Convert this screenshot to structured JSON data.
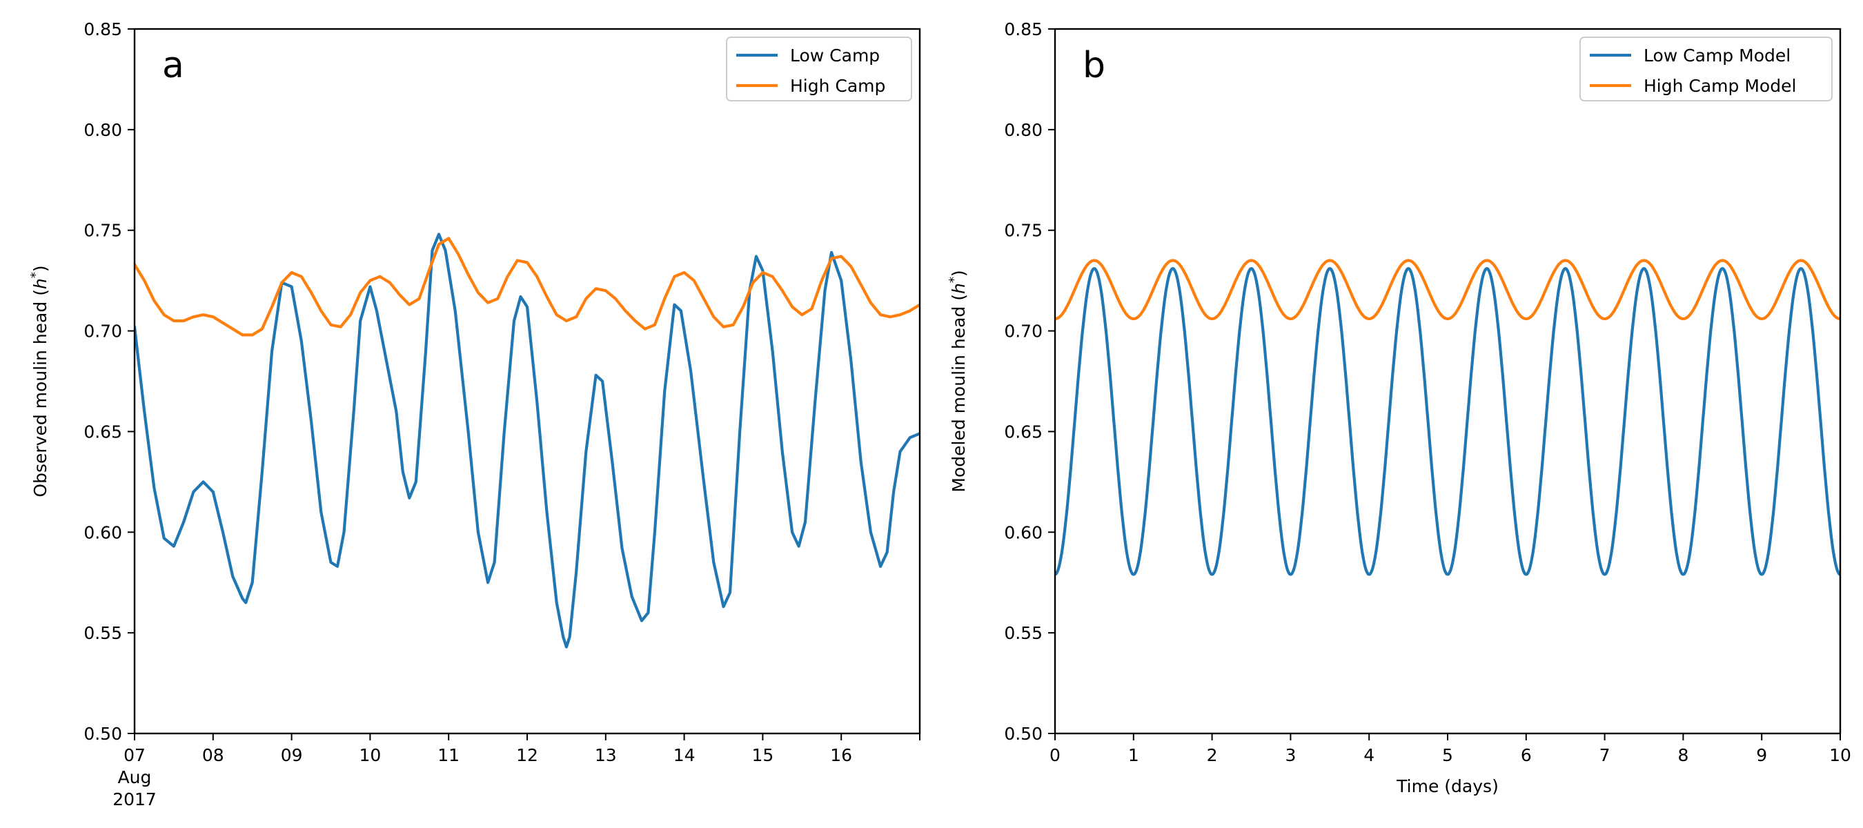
{
  "colors": {
    "low": "#1f77b4",
    "high": "#ff7f0e",
    "axes": "#000000",
    "legend_border": "#cccccc"
  },
  "chart_data": [
    {
      "type": "line",
      "panel_label": "a",
      "title": "",
      "xlabel": "",
      "ylabel": "Observed moulin head (",
      "ylabel_symbol": "h",
      "ylabel_sup": "*",
      "ylabel_end": ")",
      "x_unit": "date",
      "xlim": [
        "2017-08-07",
        "2017-08-17"
      ],
      "ylim": [
        0.5,
        0.85
      ],
      "x_tick_labels": [
        "07",
        "08",
        "09",
        "10",
        "11",
        "12",
        "13",
        "14",
        "15",
        "16"
      ],
      "x_tick_dates": [
        "2017-08-07",
        "2017-08-08",
        "2017-08-09",
        "2017-08-10",
        "2017-08-11",
        "2017-08-12",
        "2017-08-13",
        "2017-08-14",
        "2017-08-15",
        "2017-08-16"
      ],
      "x_tick_sublabel": [
        "Aug",
        "2017"
      ],
      "y_ticks": [
        0.5,
        0.55,
        0.6,
        0.65,
        0.7,
        0.75,
        0.8,
        0.85
      ],
      "y_tick_labels": [
        "0.50",
        "0.55",
        "0.60",
        "0.65",
        "0.70",
        "0.75",
        "0.80",
        "0.85"
      ],
      "grid": false,
      "legend": "top-right",
      "series": [
        {
          "name": "Low Camp",
          "color_key": "low",
          "points": [
            [
              "2017-08-07 00:00",
              0.702
            ],
            [
              "2017-08-07 03:00",
              0.66
            ],
            [
              "2017-08-07 06:00",
              0.622
            ],
            [
              "2017-08-07 09:00",
              0.597
            ],
            [
              "2017-08-07 12:00",
              0.593
            ],
            [
              "2017-08-07 15:00",
              0.605
            ],
            [
              "2017-08-07 18:00",
              0.62
            ],
            [
              "2017-08-07 21:00",
              0.625
            ],
            [
              "2017-08-08 00:00",
              0.62
            ],
            [
              "2017-08-08 03:00",
              0.6
            ],
            [
              "2017-08-08 06:00",
              0.578
            ],
            [
              "2017-08-08 09:00",
              0.567
            ],
            [
              "2017-08-08 10:00",
              0.565
            ],
            [
              "2017-08-08 12:00",
              0.575
            ],
            [
              "2017-08-08 15:00",
              0.63
            ],
            [
              "2017-08-08 18:00",
              0.69
            ],
            [
              "2017-08-08 21:00",
              0.724
            ],
            [
              "2017-08-09 00:00",
              0.722
            ],
            [
              "2017-08-09 03:00",
              0.695
            ],
            [
              "2017-08-09 06:00",
              0.655
            ],
            [
              "2017-08-09 09:00",
              0.61
            ],
            [
              "2017-08-09 12:00",
              0.585
            ],
            [
              "2017-08-09 14:00",
              0.583
            ],
            [
              "2017-08-09 16:00",
              0.6
            ],
            [
              "2017-08-09 19:00",
              0.66
            ],
            [
              "2017-08-09 21:00",
              0.705
            ],
            [
              "2017-08-10 00:00",
              0.722
            ],
            [
              "2017-08-10 02:00",
              0.71
            ],
            [
              "2017-08-10 05:00",
              0.685
            ],
            [
              "2017-08-10 08:00",
              0.66
            ],
            [
              "2017-08-10 10:00",
              0.63
            ],
            [
              "2017-08-10 12:00",
              0.617
            ],
            [
              "2017-08-10 14:00",
              0.625
            ],
            [
              "2017-08-10 17:00",
              0.69
            ],
            [
              "2017-08-10 19:00",
              0.74
            ],
            [
              "2017-08-10 21:00",
              0.748
            ],
            [
              "2017-08-10 23:00",
              0.74
            ],
            [
              "2017-08-11 02:00",
              0.71
            ],
            [
              "2017-08-11 06:00",
              0.65
            ],
            [
              "2017-08-11 09:00",
              0.6
            ],
            [
              "2017-08-11 12:00",
              0.575
            ],
            [
              "2017-08-11 14:00",
              0.585
            ],
            [
              "2017-08-11 17:00",
              0.65
            ],
            [
              "2017-08-11 20:00",
              0.705
            ],
            [
              "2017-08-11 22:00",
              0.717
            ],
            [
              "2017-08-12 00:00",
              0.712
            ],
            [
              "2017-08-12 03:00",
              0.665
            ],
            [
              "2017-08-12 06:00",
              0.61
            ],
            [
              "2017-08-12 09:00",
              0.565
            ],
            [
              "2017-08-12 11:00",
              0.548
            ],
            [
              "2017-08-12 12:00",
              0.543
            ],
            [
              "2017-08-12 13:00",
              0.548
            ],
            [
              "2017-08-12 15:00",
              0.58
            ],
            [
              "2017-08-12 18:00",
              0.64
            ],
            [
              "2017-08-12 21:00",
              0.678
            ],
            [
              "2017-08-12 23:00",
              0.675
            ],
            [
              "2017-08-13 02:00",
              0.635
            ],
            [
              "2017-08-13 05:00",
              0.592
            ],
            [
              "2017-08-13 08:00",
              0.568
            ],
            [
              "2017-08-13 11:00",
              0.556
            ],
            [
              "2017-08-13 13:00",
              0.56
            ],
            [
              "2017-08-13 15:00",
              0.6
            ],
            [
              "2017-08-13 18:00",
              0.67
            ],
            [
              "2017-08-13 21:00",
              0.713
            ],
            [
              "2017-08-13 23:00",
              0.71
            ],
            [
              "2017-08-14 02:00",
              0.68
            ],
            [
              "2017-08-14 06:00",
              0.625
            ],
            [
              "2017-08-14 09:00",
              0.585
            ],
            [
              "2017-08-14 12:00",
              0.563
            ],
            [
              "2017-08-14 14:00",
              0.57
            ],
            [
              "2017-08-14 17:00",
              0.65
            ],
            [
              "2017-08-14 20:00",
              0.72
            ],
            [
              "2017-08-14 22:00",
              0.737
            ],
            [
              "2017-08-15 00:00",
              0.73
            ],
            [
              "2017-08-15 03:00",
              0.69
            ],
            [
              "2017-08-15 06:00",
              0.64
            ],
            [
              "2017-08-15 09:00",
              0.6
            ],
            [
              "2017-08-15 11:00",
              0.593
            ],
            [
              "2017-08-15 13:00",
              0.605
            ],
            [
              "2017-08-15 16:00",
              0.665
            ],
            [
              "2017-08-15 19:00",
              0.72
            ],
            [
              "2017-08-15 21:00",
              0.739
            ],
            [
              "2017-08-16 00:00",
              0.725
            ],
            [
              "2017-08-16 03:00",
              0.685
            ],
            [
              "2017-08-16 06:00",
              0.635
            ],
            [
              "2017-08-16 09:00",
              0.6
            ],
            [
              "2017-08-16 12:00",
              0.583
            ],
            [
              "2017-08-16 14:00",
              0.59
            ],
            [
              "2017-08-16 16:00",
              0.62
            ],
            [
              "2017-08-16 18:00",
              0.64
            ],
            [
              "2017-08-16 21:00",
              0.647
            ],
            [
              "2017-08-17 00:00",
              0.649
            ]
          ]
        },
        {
          "name": "High Camp",
          "color_key": "high",
          "points": [
            [
              "2017-08-07 00:00",
              0.733
            ],
            [
              "2017-08-07 03:00",
              0.725
            ],
            [
              "2017-08-07 06:00",
              0.715
            ],
            [
              "2017-08-07 09:00",
              0.708
            ],
            [
              "2017-08-07 12:00",
              0.705
            ],
            [
              "2017-08-07 15:00",
              0.705
            ],
            [
              "2017-08-07 18:00",
              0.707
            ],
            [
              "2017-08-07 21:00",
              0.708
            ],
            [
              "2017-08-08 00:00",
              0.707
            ],
            [
              "2017-08-08 03:00",
              0.704
            ],
            [
              "2017-08-08 06:00",
              0.701
            ],
            [
              "2017-08-08 09:00",
              0.698
            ],
            [
              "2017-08-08 12:00",
              0.698
            ],
            [
              "2017-08-08 15:00",
              0.701
            ],
            [
              "2017-08-08 18:00",
              0.712
            ],
            [
              "2017-08-08 21:00",
              0.724
            ],
            [
              "2017-08-09 00:00",
              0.729
            ],
            [
              "2017-08-09 03:00",
              0.727
            ],
            [
              "2017-08-09 06:00",
              0.719
            ],
            [
              "2017-08-09 09:00",
              0.71
            ],
            [
              "2017-08-09 12:00",
              0.703
            ],
            [
              "2017-08-09 15:00",
              0.702
            ],
            [
              "2017-08-09 18:00",
              0.708
            ],
            [
              "2017-08-09 21:00",
              0.719
            ],
            [
              "2017-08-10 00:00",
              0.725
            ],
            [
              "2017-08-10 03:00",
              0.727
            ],
            [
              "2017-08-10 06:00",
              0.724
            ],
            [
              "2017-08-10 09:00",
              0.718
            ],
            [
              "2017-08-10 12:00",
              0.713
            ],
            [
              "2017-08-10 15:00",
              0.716
            ],
            [
              "2017-08-10 18:00",
              0.73
            ],
            [
              "2017-08-10 21:00",
              0.743
            ],
            [
              "2017-08-11 00:00",
              0.746
            ],
            [
              "2017-08-11 03:00",
              0.738
            ],
            [
              "2017-08-11 06:00",
              0.728
            ],
            [
              "2017-08-11 09:00",
              0.719
            ],
            [
              "2017-08-11 12:00",
              0.714
            ],
            [
              "2017-08-11 15:00",
              0.716
            ],
            [
              "2017-08-11 18:00",
              0.727
            ],
            [
              "2017-08-11 21:00",
              0.735
            ],
            [
              "2017-08-12 00:00",
              0.734
            ],
            [
              "2017-08-12 03:00",
              0.727
            ],
            [
              "2017-08-12 06:00",
              0.717
            ],
            [
              "2017-08-12 09:00",
              0.708
            ],
            [
              "2017-08-12 12:00",
              0.705
            ],
            [
              "2017-08-12 15:00",
              0.707
            ],
            [
              "2017-08-12 18:00",
              0.716
            ],
            [
              "2017-08-12 21:00",
              0.721
            ],
            [
              "2017-08-13 00:00",
              0.72
            ],
            [
              "2017-08-13 03:00",
              0.716
            ],
            [
              "2017-08-13 06:00",
              0.71
            ],
            [
              "2017-08-13 09:00",
              0.705
            ],
            [
              "2017-08-13 12:00",
              0.701
            ],
            [
              "2017-08-13 15:00",
              0.703
            ],
            [
              "2017-08-13 18:00",
              0.716
            ],
            [
              "2017-08-13 21:00",
              0.727
            ],
            [
              "2017-08-14 00:00",
              0.729
            ],
            [
              "2017-08-14 03:00",
              0.725
            ],
            [
              "2017-08-14 06:00",
              0.716
            ],
            [
              "2017-08-14 09:00",
              0.707
            ],
            [
              "2017-08-14 12:00",
              0.702
            ],
            [
              "2017-08-14 15:00",
              0.703
            ],
            [
              "2017-08-14 18:00",
              0.712
            ],
            [
              "2017-08-14 21:00",
              0.724
            ],
            [
              "2017-08-15 00:00",
              0.729
            ],
            [
              "2017-08-15 03:00",
              0.727
            ],
            [
              "2017-08-15 06:00",
              0.72
            ],
            [
              "2017-08-15 09:00",
              0.712
            ],
            [
              "2017-08-15 12:00",
              0.708
            ],
            [
              "2017-08-15 15:00",
              0.711
            ],
            [
              "2017-08-15 18:00",
              0.725
            ],
            [
              "2017-08-15 21:00",
              0.736
            ],
            [
              "2017-08-16 00:00",
              0.737
            ],
            [
              "2017-08-16 03:00",
              0.732
            ],
            [
              "2017-08-16 06:00",
              0.723
            ],
            [
              "2017-08-16 09:00",
              0.714
            ],
            [
              "2017-08-16 12:00",
              0.708
            ],
            [
              "2017-08-16 15:00",
              0.707
            ],
            [
              "2017-08-16 18:00",
              0.708
            ],
            [
              "2017-08-16 21:00",
              0.71
            ],
            [
              "2017-08-17 00:00",
              0.713
            ]
          ]
        }
      ]
    },
    {
      "type": "line",
      "panel_label": "b",
      "title": "",
      "xlabel": "Time (days)",
      "ylabel": "Modeled moulin head (",
      "ylabel_symbol": "h",
      "ylabel_sup": "*",
      "ylabel_end": ")",
      "xlim": [
        0,
        10
      ],
      "ylim": [
        0.5,
        0.85
      ],
      "x_ticks": [
        0,
        1,
        2,
        3,
        4,
        5,
        6,
        7,
        8,
        9,
        10
      ],
      "x_tick_labels": [
        "0",
        "1",
        "2",
        "3",
        "4",
        "5",
        "6",
        "7",
        "8",
        "9",
        "10"
      ],
      "y_ticks": [
        0.5,
        0.55,
        0.6,
        0.65,
        0.7,
        0.75,
        0.8,
        0.85
      ],
      "y_tick_labels": [
        "0.50",
        "0.55",
        "0.60",
        "0.65",
        "0.70",
        "0.75",
        "0.80",
        "0.85"
      ],
      "grid": false,
      "legend": "top-right",
      "series": [
        {
          "name": "Low Camp Model",
          "color_key": "low",
          "model": {
            "mean": 0.655,
            "amplitude": 0.076,
            "period_days": 1,
            "phase_shift_days": 0.5
          },
          "x": [
            0,
            0.5,
            1,
            1.5,
            2,
            2.5,
            3,
            3.5,
            4,
            4.5,
            5,
            5.5,
            6,
            6.5,
            7,
            7.5,
            8,
            8.5,
            9,
            9.5,
            10
          ],
          "y": [
            0.579,
            0.731,
            0.579,
            0.731,
            0.579,
            0.731,
            0.579,
            0.731,
            0.579,
            0.731,
            0.579,
            0.731,
            0.579,
            0.731,
            0.579,
            0.731,
            0.579,
            0.731,
            0.579,
            0.731,
            0.579
          ]
        },
        {
          "name": "High Camp Model",
          "color_key": "high",
          "model": {
            "mean": 0.7205,
            "amplitude": 0.0145,
            "period_days": 1,
            "phase_shift_days": 0.5
          },
          "x": [
            0,
            0.5,
            1,
            1.5,
            2,
            2.5,
            3,
            3.5,
            4,
            4.5,
            5,
            5.5,
            6,
            6.5,
            7,
            7.5,
            8,
            8.5,
            9,
            9.5,
            10
          ],
          "y": [
            0.706,
            0.735,
            0.706,
            0.735,
            0.706,
            0.735,
            0.706,
            0.735,
            0.706,
            0.735,
            0.706,
            0.735,
            0.706,
            0.735,
            0.706,
            0.735,
            0.706,
            0.735,
            0.706,
            0.735,
            0.706
          ]
        }
      ]
    }
  ]
}
